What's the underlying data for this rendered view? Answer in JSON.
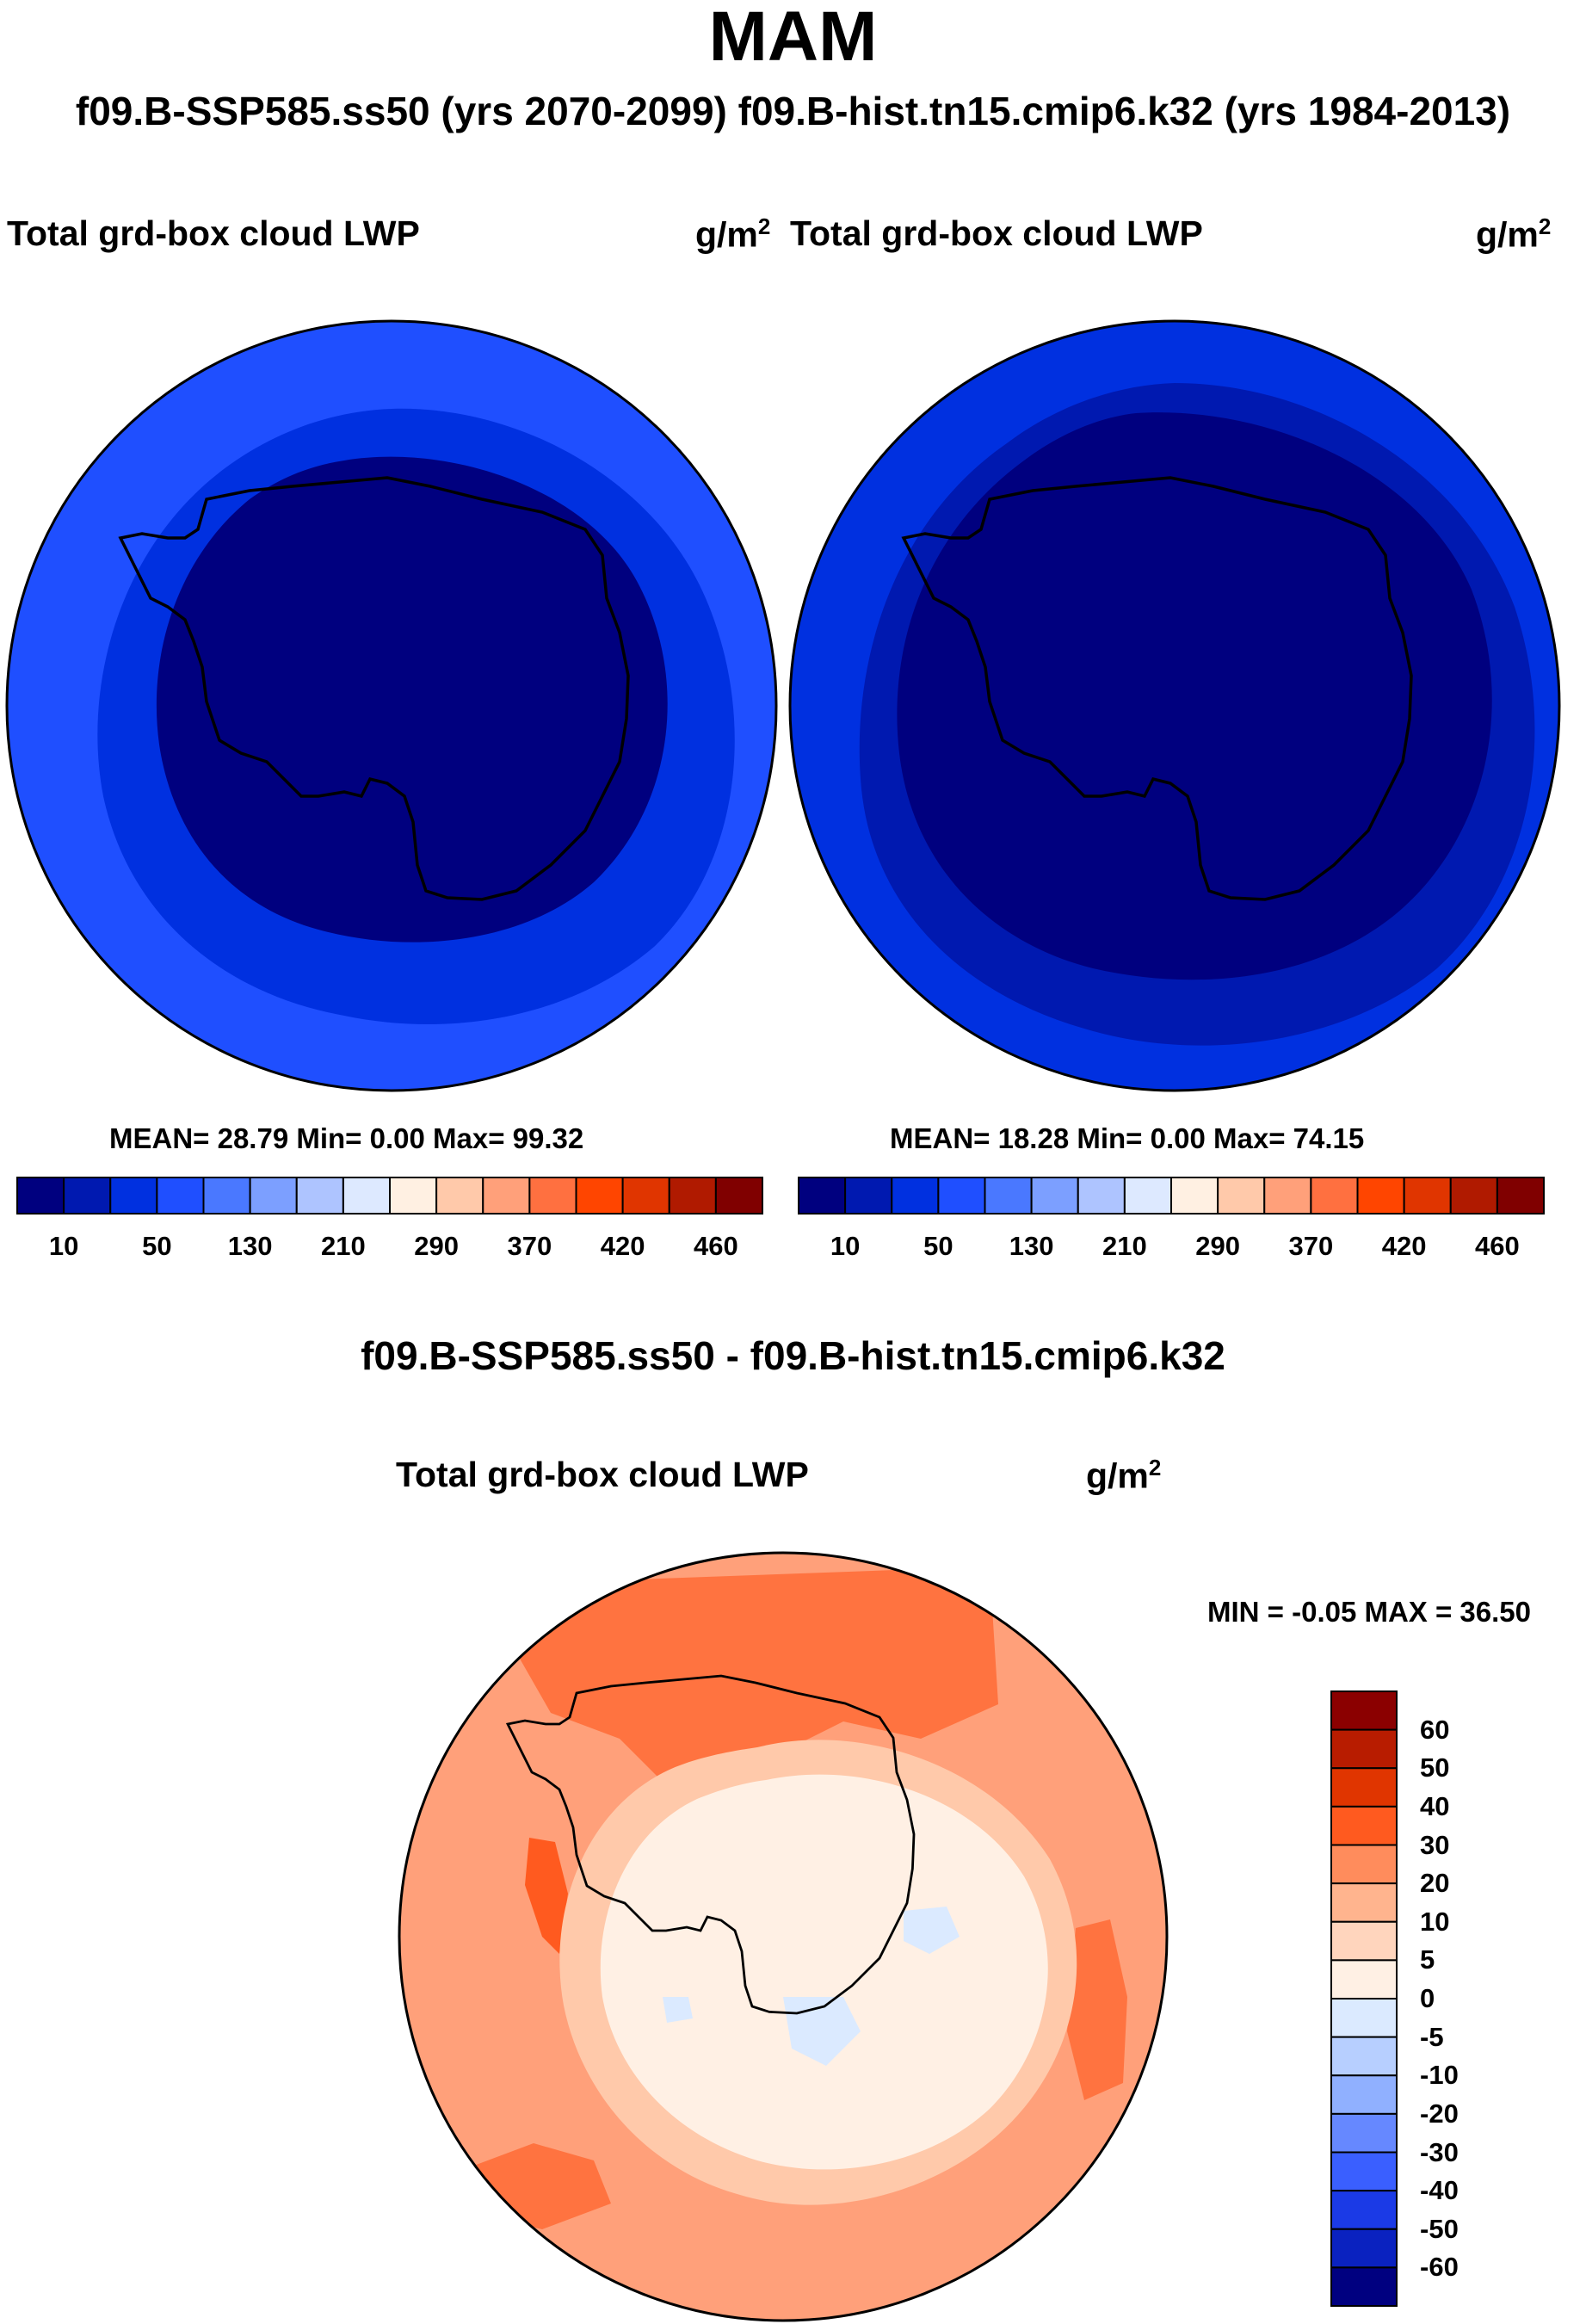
{
  "season": "MAM",
  "subtitle": "f09.B-SSP585.ss50 (yrs 2070-2099)  f09.B-hist.tn15.cmip6.k32 (yrs 1984-2013)",
  "panels": [
    {
      "variable": "Total grd-box cloud LWP",
      "units_base": "g/m",
      "units_exp": "2",
      "stats": "MEAN=  28.79  Min=    0.00  Max=  99.32"
    },
    {
      "variable": "Total grd-box cloud LWP",
      "units_base": "g/m",
      "units_exp": "2",
      "stats": "MEAN=  18.28  Min=    0.00  Max=  74.15"
    }
  ],
  "abs_colorbar": {
    "labels": [
      "10",
      "50",
      "130",
      "210",
      "290",
      "370",
      "420",
      "460"
    ],
    "colors": [
      "#00007f",
      "#0019b0",
      "#0030e0",
      "#1f4fff",
      "#4a78ff",
      "#7c9fff",
      "#aec4ff",
      "#dde9ff",
      "#fff0e2",
      "#ffc9aa",
      "#ffa07a",
      "#ff7040",
      "#ff4500",
      "#e03500",
      "#b01a00",
      "#800000"
    ]
  },
  "diff": {
    "title": "f09.B-SSP585.ss50 - f09.B-hist.tn15.cmip6.k32",
    "variable": "Total grd-box cloud LWP",
    "units_base": "g/m",
    "units_exp": "2",
    "minmax": "MIN =  -0.05 MAX =  36.50",
    "colorbar_labels": [
      "60",
      "50",
      "40",
      "30",
      "20",
      "10",
      "5",
      "0",
      "-5",
      "-10",
      "-20",
      "-30",
      "-40",
      "-50",
      "-60"
    ],
    "colorbar_colors": [
      "#8b0000",
      "#b81c00",
      "#e03500",
      "#ff5a1f",
      "#ff8c5c",
      "#ffb48e",
      "#ffd5bd",
      "#fff0e4",
      "#dbeaff",
      "#b7cfff",
      "#90b0ff",
      "#6688ff",
      "#3a5fff",
      "#1b3ae6",
      "#0a22c0",
      "#000080"
    ]
  },
  "map_colors": {
    "ocean_a": "#1f4fff",
    "band_a": "#0030e0",
    "inner_a": "#00007f",
    "ocean_b": "#0030e0",
    "band_b": "#0019b0",
    "inner_b": "#00007f",
    "diff_ocean": "#ffa07a",
    "diff_orange": "#ff7340",
    "diff_red": "#ff5a1f",
    "diff_peach": "#ffc9aa",
    "diff_land": "#fff0e4",
    "diff_blue": "#dbeaff"
  }
}
